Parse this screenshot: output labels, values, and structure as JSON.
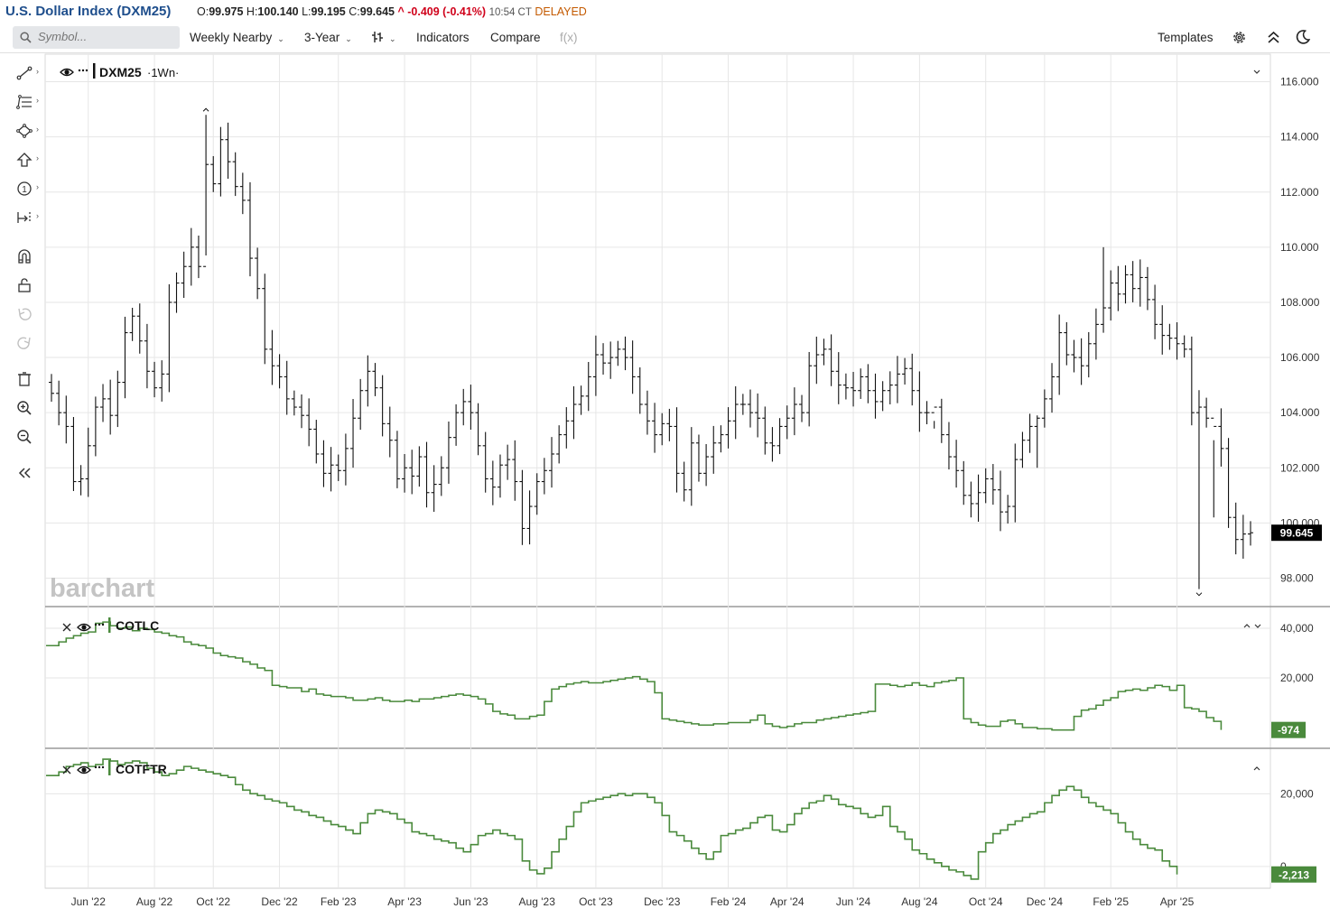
{
  "header": {
    "title": "U.S. Dollar Index (DXM25)",
    "o_label": "O:",
    "o_value": "99.975",
    "h_label": "H:",
    "h_value": "100.140",
    "l_label": "L:",
    "l_value": "99.195",
    "c_label": "C:",
    "c_value": "99.645",
    "change": "^ -0.409 (-0.41%)",
    "time": "10:54 CT",
    "status": "DELAYED"
  },
  "toolbar": {
    "search_placeholder": "Symbol...",
    "period": "Weekly Nearby",
    "range": "3-Year",
    "indicators": "Indicators",
    "compare": "Compare",
    "fx": "f(x)",
    "templates": "Templates"
  },
  "icons": {
    "search": "search-icon",
    "bar_type": "bar-type-icon",
    "settings": "gear-icon",
    "collapse": "double-chevron-up-icon",
    "theme": "moon-icon",
    "sidebar": [
      "line-tool-icon",
      "fib-tool-icon",
      "shape-tool-icon",
      "arrow-tool-icon",
      "number-tool-icon",
      "measure-tool-icon",
      "magnet-icon",
      "lock-icon",
      "undo-icon",
      "redo-icon",
      "trash-icon",
      "zoom-in-icon",
      "zoom-out-icon",
      "collapse-sidebar-icon"
    ]
  },
  "colors": {
    "indicator_line": "#4a8a3c",
    "indicator_badge": "#4a8a3c",
    "price_badge": "#000000",
    "title": "#1e4e8c",
    "negative": "#d0021b",
    "delayed": "#c45a00"
  },
  "watermark": "barchart",
  "chart_data": [
    {
      "type": "ohlc",
      "symbol": "DXM25",
      "interval_label": "·1Wn·",
      "last_price": "99.645",
      "ylim": [
        97,
        117
      ],
      "yticks": [
        "116.000",
        "114.000",
        "112.000",
        "110.000",
        "108.000",
        "106.000",
        "104.000",
        "102.000",
        "100.000",
        "98.000"
      ],
      "x_labels": [
        "Jun '22",
        "Aug '22",
        "Oct '22",
        "Dec '22",
        "Feb '23",
        "Apr '23",
        "Jun '23",
        "Aug '23",
        "Oct '23",
        "Dec '23",
        "Feb '24",
        "Apr '24",
        "Jun '24",
        "Aug '24",
        "Oct '24",
        "Dec '24",
        "Feb '25",
        "Apr '25"
      ],
      "x_label_weeks": [
        5,
        14,
        22,
        31,
        39,
        48,
        57,
        66,
        74,
        83,
        92,
        100,
        109,
        118,
        127,
        135,
        144,
        153
      ],
      "closes": [
        104.7,
        104.0,
        103.5,
        101.5,
        101.6,
        102.8,
        104.2,
        104.5,
        103.9,
        105.1,
        106.9,
        107.5,
        106.6,
        105.5,
        104.9,
        105.4,
        108.0,
        108.7,
        109.3,
        110.0,
        109.3,
        113.0,
        112.3,
        113.9,
        113.1,
        112.2,
        111.7,
        109.6,
        108.5,
        106.3,
        105.7,
        105.3,
        104.5,
        104.2,
        103.9,
        103.4,
        102.5,
        101.8,
        102.1,
        101.9,
        102.7,
        103.8,
        104.8,
        105.5,
        104.9,
        103.6,
        103.0,
        101.6,
        102.0,
        101.7,
        102.4,
        101.1,
        101.4,
        102.0,
        103.1,
        104.0,
        104.4,
        104.0,
        102.8,
        101.6,
        101.3,
        102.1,
        102.3,
        101.5,
        99.8,
        100.6,
        101.5,
        101.9,
        102.5,
        103.2,
        103.7,
        104.3,
        104.6,
        105.3,
        106.1,
        105.8,
        106.0,
        106.3,
        106.0,
        105.3,
        104.3,
        103.7,
        103.2,
        103.6,
        103.5,
        101.8,
        101.2,
        102.9,
        101.8,
        102.4,
        102.9,
        103.2,
        103.7,
        104.3,
        104.3,
        104.0,
        103.8,
        102.9,
        102.8,
        103.5,
        103.8,
        104.3,
        104.0,
        105.7,
        106.1,
        106.3,
        105.5,
        105.0,
        104.9,
        104.8,
        105.3,
        104.8,
        104.4,
        104.8,
        105.0,
        105.4,
        105.6,
        104.8,
        104.0,
        104.0,
        104.2,
        103.2,
        102.4,
        101.9,
        101.0,
        100.7,
        101.1,
        101.6,
        101.2,
        100.4,
        100.6,
        102.3,
        103.0,
        103.5,
        103.8,
        104.5,
        105.3,
        106.9,
        106.1,
        106.0,
        105.7,
        106.5,
        107.2,
        107.8,
        108.7,
        108.3,
        109.0,
        108.5,
        108.9,
        108.1,
        107.2,
        106.8,
        106.7,
        106.5,
        106.3,
        104.0,
        104.2,
        103.8,
        103.5,
        102.7,
        100.2,
        99.4,
        99.6,
        99.645
      ],
      "highs": {
        "21": 114.8,
        "120": 103.7,
        "134": 103.9,
        "143": 110.0,
        "158": 100.2
      },
      "lows": {
        "21": 109.7,
        "64": 99.2,
        "134": 102.0,
        "156": 97.6
      }
    },
    {
      "type": "step",
      "name": "COTLC",
      "last_value": "-974",
      "ylim": [
        -8000,
        48000
      ],
      "yticks": [
        "40,000",
        "20,000"
      ],
      "values": [
        33000,
        34500,
        36000,
        37000,
        38000,
        38500,
        42000,
        42500,
        41000,
        40000,
        40500,
        39000,
        40000,
        39500,
        38500,
        38000,
        37000,
        36500,
        34500,
        33500,
        33000,
        32000,
        30000,
        29000,
        28500,
        28000,
        26500,
        25500,
        24000,
        23000,
        17000,
        16500,
        16000,
        16000,
        14500,
        15500,
        13500,
        13000,
        12500,
        12500,
        12000,
        11000,
        11000,
        11500,
        12000,
        11000,
        10500,
        10500,
        11000,
        10500,
        11500,
        11500,
        12000,
        12500,
        13000,
        13500,
        13000,
        12500,
        11500,
        9500,
        6500,
        5500,
        5000,
        3500,
        3500,
        4500,
        5000,
        10500,
        15500,
        16500,
        17500,
        18000,
        18500,
        18000,
        18000,
        18500,
        19000,
        19500,
        20000,
        20500,
        19500,
        18500,
        14000,
        3500,
        3000,
        2500,
        2000,
        1500,
        1000,
        1000,
        1500,
        1500,
        2000,
        2000,
        2000,
        3000,
        5000,
        1500,
        500,
        0,
        500,
        1500,
        2000,
        2000,
        3000,
        3500,
        4000,
        4500,
        5000,
        5500,
        6000,
        6500,
        17500,
        17500,
        17000,
        16500,
        17000,
        18000,
        17000,
        16500,
        18000,
        18500,
        19000,
        20000,
        3500,
        2000,
        1000,
        500,
        500,
        2500,
        3000,
        1500,
        0,
        0,
        -500,
        -500,
        -1000,
        -1000,
        -1000,
        4500,
        7000,
        7500,
        9000,
        11000,
        12000,
        14500,
        15000,
        15500,
        15000,
        16000,
        17000,
        16500,
        15000,
        17000,
        8000,
        7500,
        6500,
        4000,
        2500,
        -974
      ],
      "line_color": "#4a8a3c"
    },
    {
      "type": "step",
      "name": "COTFTR",
      "last_value": "-2,213",
      "ylim": [
        -6000,
        32000
      ],
      "yticks": [
        "20,000",
        "0"
      ],
      "values": [
        25000,
        26000,
        27500,
        28000,
        28500,
        27500,
        28000,
        29500,
        29000,
        28000,
        28500,
        29000,
        28500,
        27000,
        26000,
        25000,
        25500,
        26500,
        27500,
        27000,
        26500,
        26000,
        25500,
        25000,
        24500,
        22500,
        21000,
        20000,
        19500,
        18500,
        18000,
        17500,
        16500,
        15500,
        15000,
        14000,
        13500,
        12500,
        11500,
        11000,
        10000,
        9000,
        12000,
        14500,
        15500,
        15000,
        14500,
        13000,
        12000,
        9500,
        9000,
        8500,
        7500,
        7000,
        6500,
        5000,
        4000,
        6000,
        8500,
        9000,
        10000,
        9000,
        8500,
        7500,
        1500,
        -1000,
        -2000,
        -500,
        4000,
        7500,
        11000,
        15000,
        17500,
        18000,
        18500,
        19000,
        19500,
        20000,
        19500,
        20000,
        20000,
        19000,
        17500,
        14000,
        9500,
        8500,
        7000,
        5000,
        3500,
        2000,
        4000,
        8500,
        9000,
        10000,
        10500,
        12000,
        13500,
        14000,
        10000,
        9500,
        11500,
        14500,
        16000,
        17500,
        18000,
        19500,
        18500,
        17000,
        16500,
        16000,
        14500,
        13500,
        14000,
        16500,
        11000,
        9500,
        7500,
        4500,
        3500,
        2000,
        1000,
        0,
        -1000,
        -1500,
        -2500,
        -3500,
        4000,
        6500,
        9000,
        10000,
        11500,
        12500,
        13500,
        14500,
        15000,
        17500,
        19500,
        21000,
        22000,
        21000,
        19000,
        17500,
        16500,
        15500,
        14500,
        12000,
        9500,
        7500,
        6000,
        5000,
        4500,
        1500,
        0,
        -2213
      ],
      "line_color": "#4a8a3c"
    }
  ]
}
